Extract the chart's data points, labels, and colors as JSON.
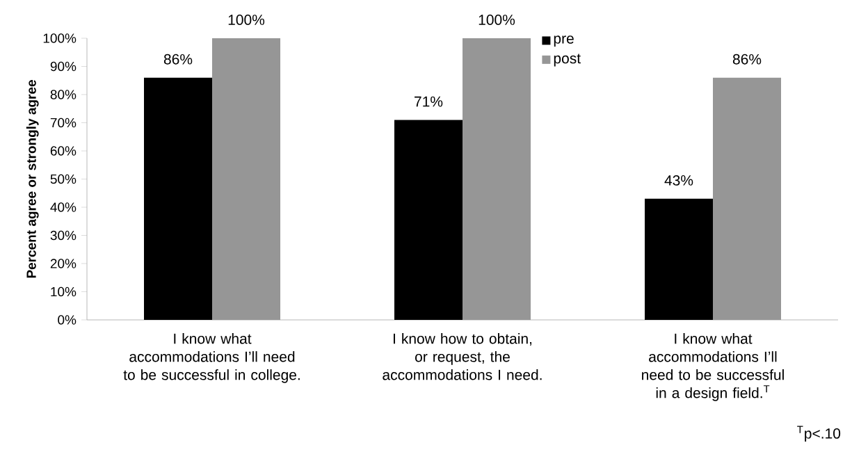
{
  "chart_data": {
    "type": "bar",
    "ylabel": "Percent agree or strongly agree",
    "categories": [
      "I know what accommodations I’ll need to be successful in college.",
      "I know how to obtain, or request, the accommodations I need.",
      "I know what accommodations I’ll need to be successful in a design field.$^{T}$"
    ],
    "series": [
      {
        "name": "pre",
        "color": "#000000",
        "values": [
          86,
          71,
          43
        ],
        "value_labels": [
          "86%",
          "71%",
          "43%"
        ]
      },
      {
        "name": "post",
        "color": "#969696",
        "values": [
          100,
          100,
          86
        ],
        "value_labels": [
          "100%",
          "100%",
          "86%"
        ]
      }
    ],
    "ylim": [
      0,
      100
    ],
    "yticks": [
      {
        "value": 0,
        "label": "0%"
      },
      {
        "value": 10,
        "label": "10%"
      },
      {
        "value": 20,
        "label": "20%"
      },
      {
        "value": 30,
        "label": "30%"
      },
      {
        "value": 40,
        "label": "40%"
      },
      {
        "value": 50,
        "label": "50%"
      },
      {
        "value": 60,
        "label": "60%"
      },
      {
        "value": 70,
        "label": "70%"
      },
      {
        "value": 80,
        "label": "80%"
      },
      {
        "value": 90,
        "label": "90%"
      },
      {
        "value": 100,
        "label": "100%"
      }
    ],
    "grid": false,
    "legend": "top",
    "annotations": [
      "$^{T}$p<.10"
    ]
  }
}
